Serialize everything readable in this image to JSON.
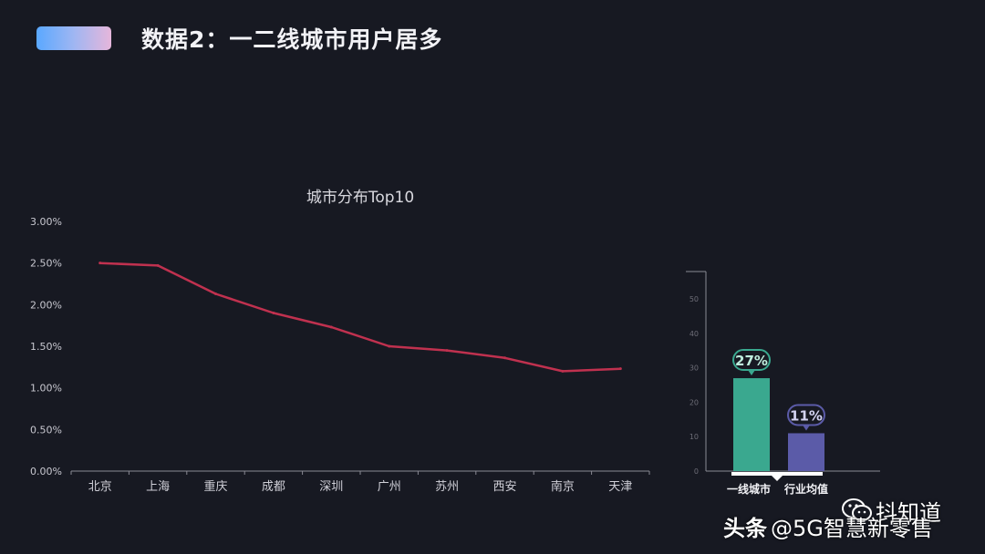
{
  "header": {
    "title": "数据2：一二线城市用户居多"
  },
  "colors": {
    "background": "#171922",
    "line": "#c0314f",
    "bar_tier1": "#3aa88f",
    "bar_industry": "#5b5ba8"
  },
  "chart_data": [
    {
      "type": "line",
      "title": "城市分布Top10",
      "categories": [
        "北京",
        "上海",
        "重庆",
        "成都",
        "深圳",
        "广州",
        "苏州",
        "西安",
        "南京",
        "天津"
      ],
      "series": [
        {
          "values": [
            2.5,
            2.47,
            2.13,
            1.9,
            1.73,
            1.5,
            1.45,
            1.36,
            1.2,
            1.23
          ]
        }
      ],
      "ylim": [
        0,
        3
      ],
      "yticks": [
        "0.00%",
        "0.50%",
        "1.00%",
        "1.50%",
        "2.00%",
        "2.50%",
        "3.00%"
      ],
      "grid": false
    },
    {
      "type": "bar",
      "categories": [
        "一线城市",
        "行业均值"
      ],
      "values": [
        27,
        11
      ],
      "data_labels": [
        "27%",
        "11%"
      ],
      "ylim": [
        0,
        60
      ],
      "yticks": [
        "0",
        "10",
        "20",
        "30",
        "40",
        "50"
      ]
    }
  ],
  "watermarks": {
    "douzhidao": "抖知道",
    "toutiao": "头条",
    "account": "@5G智慧新零售"
  }
}
